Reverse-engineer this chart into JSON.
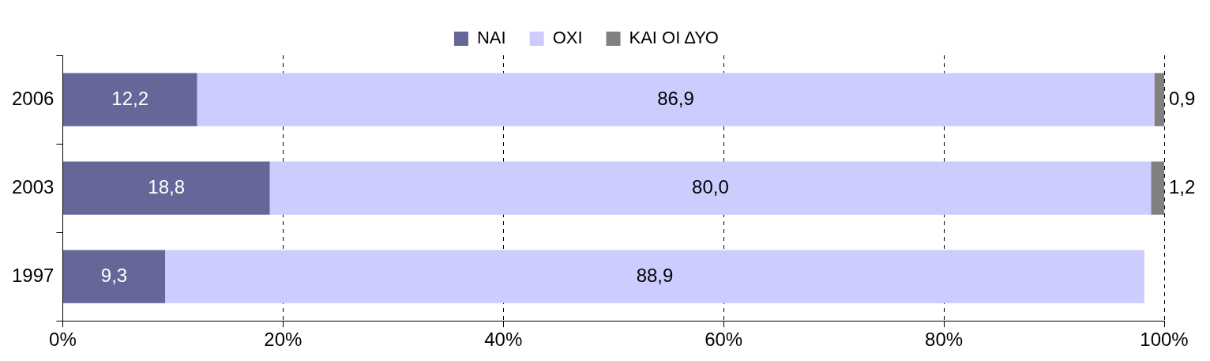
{
  "chart_data": {
    "type": "bar",
    "orientation": "horizontal",
    "stacked": true,
    "categories": [
      "2006",
      "2003",
      "1997"
    ],
    "series": [
      {
        "name": "ΝΑΙ",
        "color": "#666699",
        "values": [
          12.2,
          18.8,
          9.3
        ],
        "value_labels": [
          "12,2",
          "18,8",
          "9,3"
        ]
      },
      {
        "name": "ΟΧΙ",
        "color": "#ccccff",
        "values": [
          86.9,
          80.0,
          88.9
        ],
        "value_labels": [
          "86,9",
          "80,0",
          "88,9"
        ]
      },
      {
        "name": "ΚΑΙ ΟΙ ΔΥΟ",
        "color": "#808080",
        "values": [
          0.9,
          1.2,
          null
        ],
        "value_labels": [
          "0,9",
          "1,2",
          null
        ]
      }
    ],
    "xlim": [
      0,
      100
    ],
    "xticks": [
      {
        "value": 0,
        "label": "0%"
      },
      {
        "value": 20,
        "label": "20%"
      },
      {
        "value": 40,
        "label": "40%"
      },
      {
        "value": 60,
        "label": "60%"
      },
      {
        "value": 80,
        "label": "80%"
      },
      {
        "value": 100,
        "label": "100%"
      }
    ],
    "grid": "x",
    "legend": "top"
  }
}
